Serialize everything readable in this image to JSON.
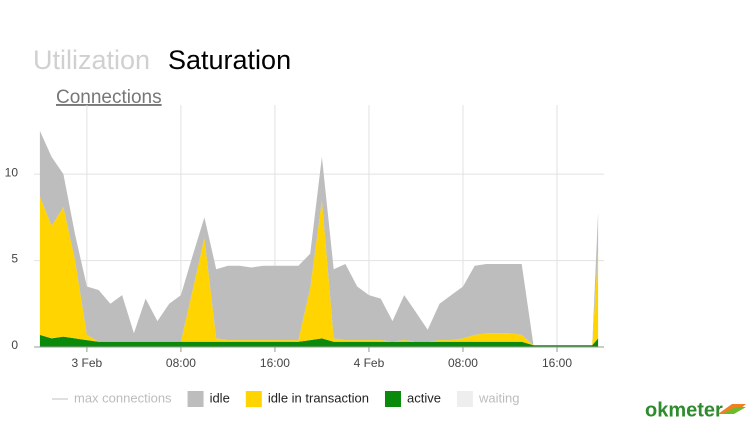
{
  "tabs": [
    "Utilization",
    "Saturation"
  ],
  "section": "Connections",
  "logo": "okmeter",
  "chart_data": {
    "type": "stacked-area",
    "x": [
      -4,
      -3,
      -2,
      -1,
      0,
      1,
      2,
      3,
      4,
      5,
      6,
      7,
      8,
      9,
      10,
      11,
      12,
      13,
      14,
      15,
      16,
      17,
      18,
      19,
      20,
      21,
      22,
      23,
      24,
      25,
      26,
      27,
      28,
      29,
      30,
      31,
      32,
      33,
      34,
      35,
      36,
      37,
      38,
      39,
      40,
      41,
      42,
      43,
      43.5
    ],
    "xlim": [
      -4.5,
      44
    ],
    "xticks": [
      {
        "value": 0,
        "label": "3 Feb"
      },
      {
        "value": 8,
        "label": "08:00"
      },
      {
        "value": 16,
        "label": "16:00"
      },
      {
        "value": 24,
        "label": "4 Feb"
      },
      {
        "value": 32,
        "label": "08:00"
      },
      {
        "value": 40,
        "label": "16:00"
      }
    ],
    "ylim": [
      0,
      14
    ],
    "yticks": [
      0,
      5,
      10
    ],
    "grid": true,
    "series": [
      {
        "name": "max connections",
        "color": "#bbbbbb",
        "hidden": true,
        "style": "line"
      },
      {
        "name": "idle",
        "color": "#bdbdbd",
        "values": [
          3.8,
          4.0,
          1.9,
          1.5,
          2.8,
          3.0,
          2.2,
          2.7,
          0.5,
          2.5,
          1.2,
          2.2,
          2.7,
          2.0,
          1.2,
          4.0,
          4.3,
          4.3,
          4.2,
          4.3,
          4.3,
          4.3,
          4.3,
          2.0,
          2.5,
          4.0,
          4.4,
          3.1,
          2.6,
          2.4,
          1.2,
          2.6,
          1.7,
          0.7,
          2.1,
          2.6,
          3.0,
          4.0,
          4.0,
          4.0,
          4.0,
          4.1,
          0,
          0,
          0,
          0,
          0,
          0,
          2.3
        ]
      },
      {
        "name": "idle in transaction",
        "color": "#ffd400",
        "values": [
          8.0,
          6.5,
          7.5,
          4.5,
          0.3,
          0,
          0,
          0,
          0,
          0,
          0,
          0,
          0,
          3.0,
          6.0,
          0.2,
          0.1,
          0.1,
          0.1,
          0.1,
          0.1,
          0.1,
          0.1,
          3.0,
          8.0,
          0.2,
          0.1,
          0.1,
          0.1,
          0.1,
          0,
          0.1,
          0,
          0,
          0.1,
          0.1,
          0.2,
          0.4,
          0.5,
          0.5,
          0.5,
          0.4,
          0,
          0,
          0,
          0,
          0,
          0,
          5.0
        ]
      },
      {
        "name": "active",
        "color": "#0a8a0a",
        "values": [
          0.7,
          0.5,
          0.6,
          0.5,
          0.4,
          0.3,
          0.3,
          0.3,
          0.3,
          0.3,
          0.3,
          0.3,
          0.3,
          0.3,
          0.3,
          0.3,
          0.3,
          0.3,
          0.3,
          0.3,
          0.3,
          0.3,
          0.3,
          0.4,
          0.5,
          0.3,
          0.3,
          0.3,
          0.3,
          0.3,
          0.3,
          0.3,
          0.3,
          0.3,
          0.3,
          0.3,
          0.3,
          0.3,
          0.3,
          0.3,
          0.3,
          0.3,
          0.1,
          0.1,
          0.1,
          0.1,
          0.1,
          0.1,
          0.5
        ]
      },
      {
        "name": "waiting",
        "color": "#d9d9d9",
        "hidden": true
      }
    ]
  }
}
